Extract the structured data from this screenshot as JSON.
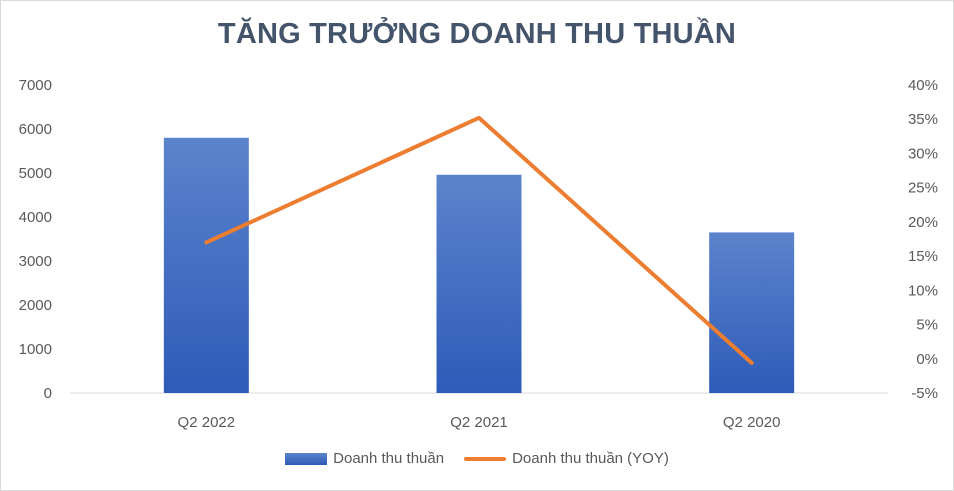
{
  "chart_data": {
    "type": "bar",
    "title": "TĂNG TRƯỞNG DOANH THU THUẦN",
    "categories": [
      "Q2 2022",
      "Q2 2021",
      "Q2 2020"
    ],
    "series": [
      {
        "name": "Doanh thu thuần",
        "type": "bar",
        "axis": "left",
        "values": [
          5800,
          4960,
          3650
        ],
        "color": "#4472c4"
      },
      {
        "name": "Doanh thu thuần (YOY)",
        "type": "line",
        "axis": "right",
        "values": [
          17,
          35.2,
          -0.6
        ],
        "color": "#ed7d31"
      }
    ],
    "y_left": {
      "ylim": [
        0,
        7000
      ],
      "ticks": [
        "0",
        "1000",
        "2000",
        "3000",
        "4000",
        "5000",
        "6000",
        "7000"
      ]
    },
    "y_right": {
      "ylim": [
        -5,
        40
      ],
      "ticks": [
        "-5%",
        "0%",
        "5%",
        "10%",
        "15%",
        "20%",
        "25%",
        "30%",
        "35%",
        "40%"
      ]
    },
    "grid": false,
    "legend_position": "bottom"
  }
}
